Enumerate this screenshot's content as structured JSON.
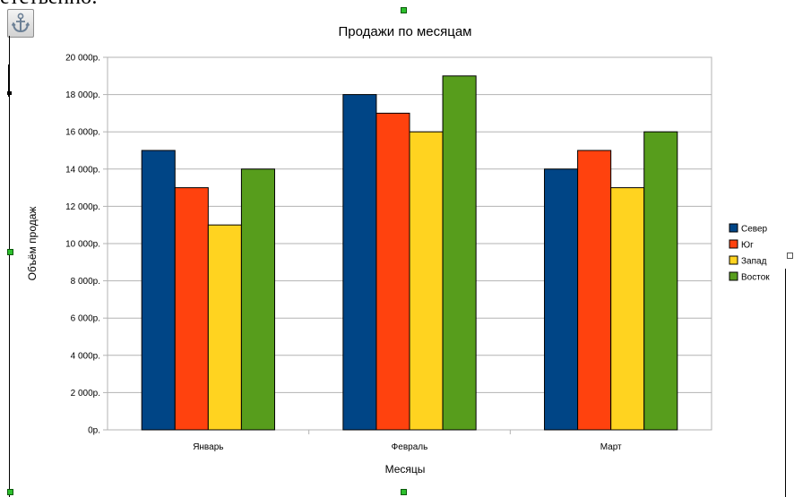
{
  "document": {
    "line_text": "етственно:"
  },
  "toolbar": {
    "anchor_icon": "anchor-icon"
  },
  "colors": {
    "north": "#004586",
    "south": "#ff420e",
    "west": "#ffd320",
    "east": "#579d1c",
    "handle": "#2dbf2d"
  },
  "chart_data": {
    "type": "bar",
    "title": "Продажи по месяцам",
    "xlabel": "Месяцы",
    "ylabel": "Объём продаж",
    "categories": [
      "Январь",
      "Февраль",
      "Март"
    ],
    "ylim": [
      0,
      20000
    ],
    "ytick_values": [
      0,
      2000,
      4000,
      6000,
      8000,
      10000,
      12000,
      14000,
      16000,
      18000,
      20000
    ],
    "ytick_labels": [
      "0р.",
      "2 000р.",
      "4 000р.",
      "6 000р.",
      "8 000р.",
      "10 000р.",
      "12 000р.",
      "14 000р.",
      "16 000р.",
      "18 000р.",
      "20 000р."
    ],
    "grid": true,
    "legend_position": "right",
    "series": [
      {
        "name": "Север",
        "color": "#004586",
        "values": [
          15000,
          18000,
          14000
        ]
      },
      {
        "name": "Юг",
        "color": "#ff420e",
        "values": [
          13000,
          17000,
          15000
        ]
      },
      {
        "name": "Запад",
        "color": "#ffd320",
        "values": [
          11000,
          16000,
          13000
        ]
      },
      {
        "name": "Восток",
        "color": "#579d1c",
        "values": [
          14000,
          19000,
          16000
        ]
      }
    ]
  }
}
